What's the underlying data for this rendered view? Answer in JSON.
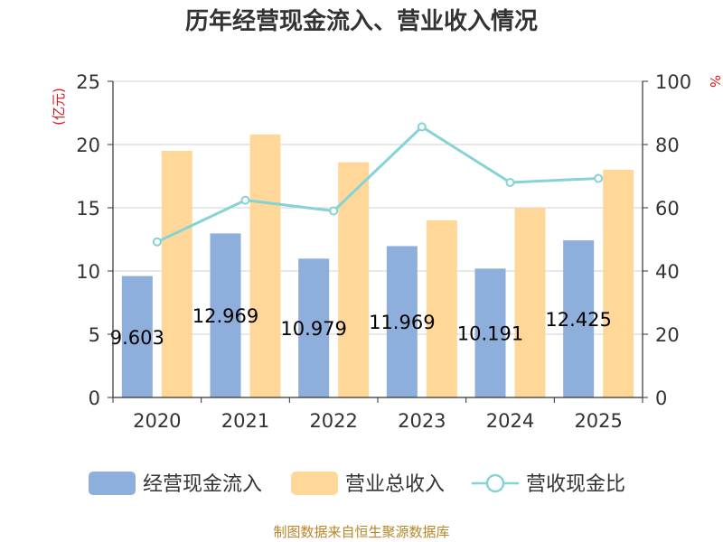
{
  "chart_data": {
    "type": "bar",
    "title": "历年经营现金流入、营业收入情况",
    "categories": [
      "2020",
      "2021",
      "2022",
      "2023",
      "2024",
      "2025"
    ],
    "series": [
      {
        "name": "经营现金流入",
        "kind": "bar",
        "axis": "left",
        "color": "#8eaedc",
        "values": [
          9.603,
          12.969,
          10.979,
          11.969,
          10.191,
          12.425
        ],
        "labels": [
          "9.603",
          "12.969",
          "10.979",
          "11.969",
          "10.191",
          "12.425"
        ]
      },
      {
        "name": "营业总收入",
        "kind": "bar",
        "axis": "left",
        "color": "#ffd899",
        "values": [
          19.5,
          20.8,
          18.6,
          14.0,
          15.0,
          18.0
        ]
      },
      {
        "name": "营收现金比",
        "kind": "line",
        "axis": "right",
        "color": "#86d3d6",
        "values": [
          49.2,
          62.4,
          59.0,
          85.6,
          68.0,
          69.3
        ]
      }
    ],
    "y_left": {
      "unit": "(亿元)",
      "min": 0,
      "max": 25,
      "ticks": [
        0,
        5,
        10,
        15,
        20,
        25
      ]
    },
    "y_right": {
      "unit": "%",
      "min": 0,
      "max": 100,
      "ticks": [
        0,
        20,
        40,
        60,
        80,
        100
      ]
    },
    "grid": true,
    "legend": "bottom",
    "source": "制图数据来自恒生聚源数据库"
  }
}
